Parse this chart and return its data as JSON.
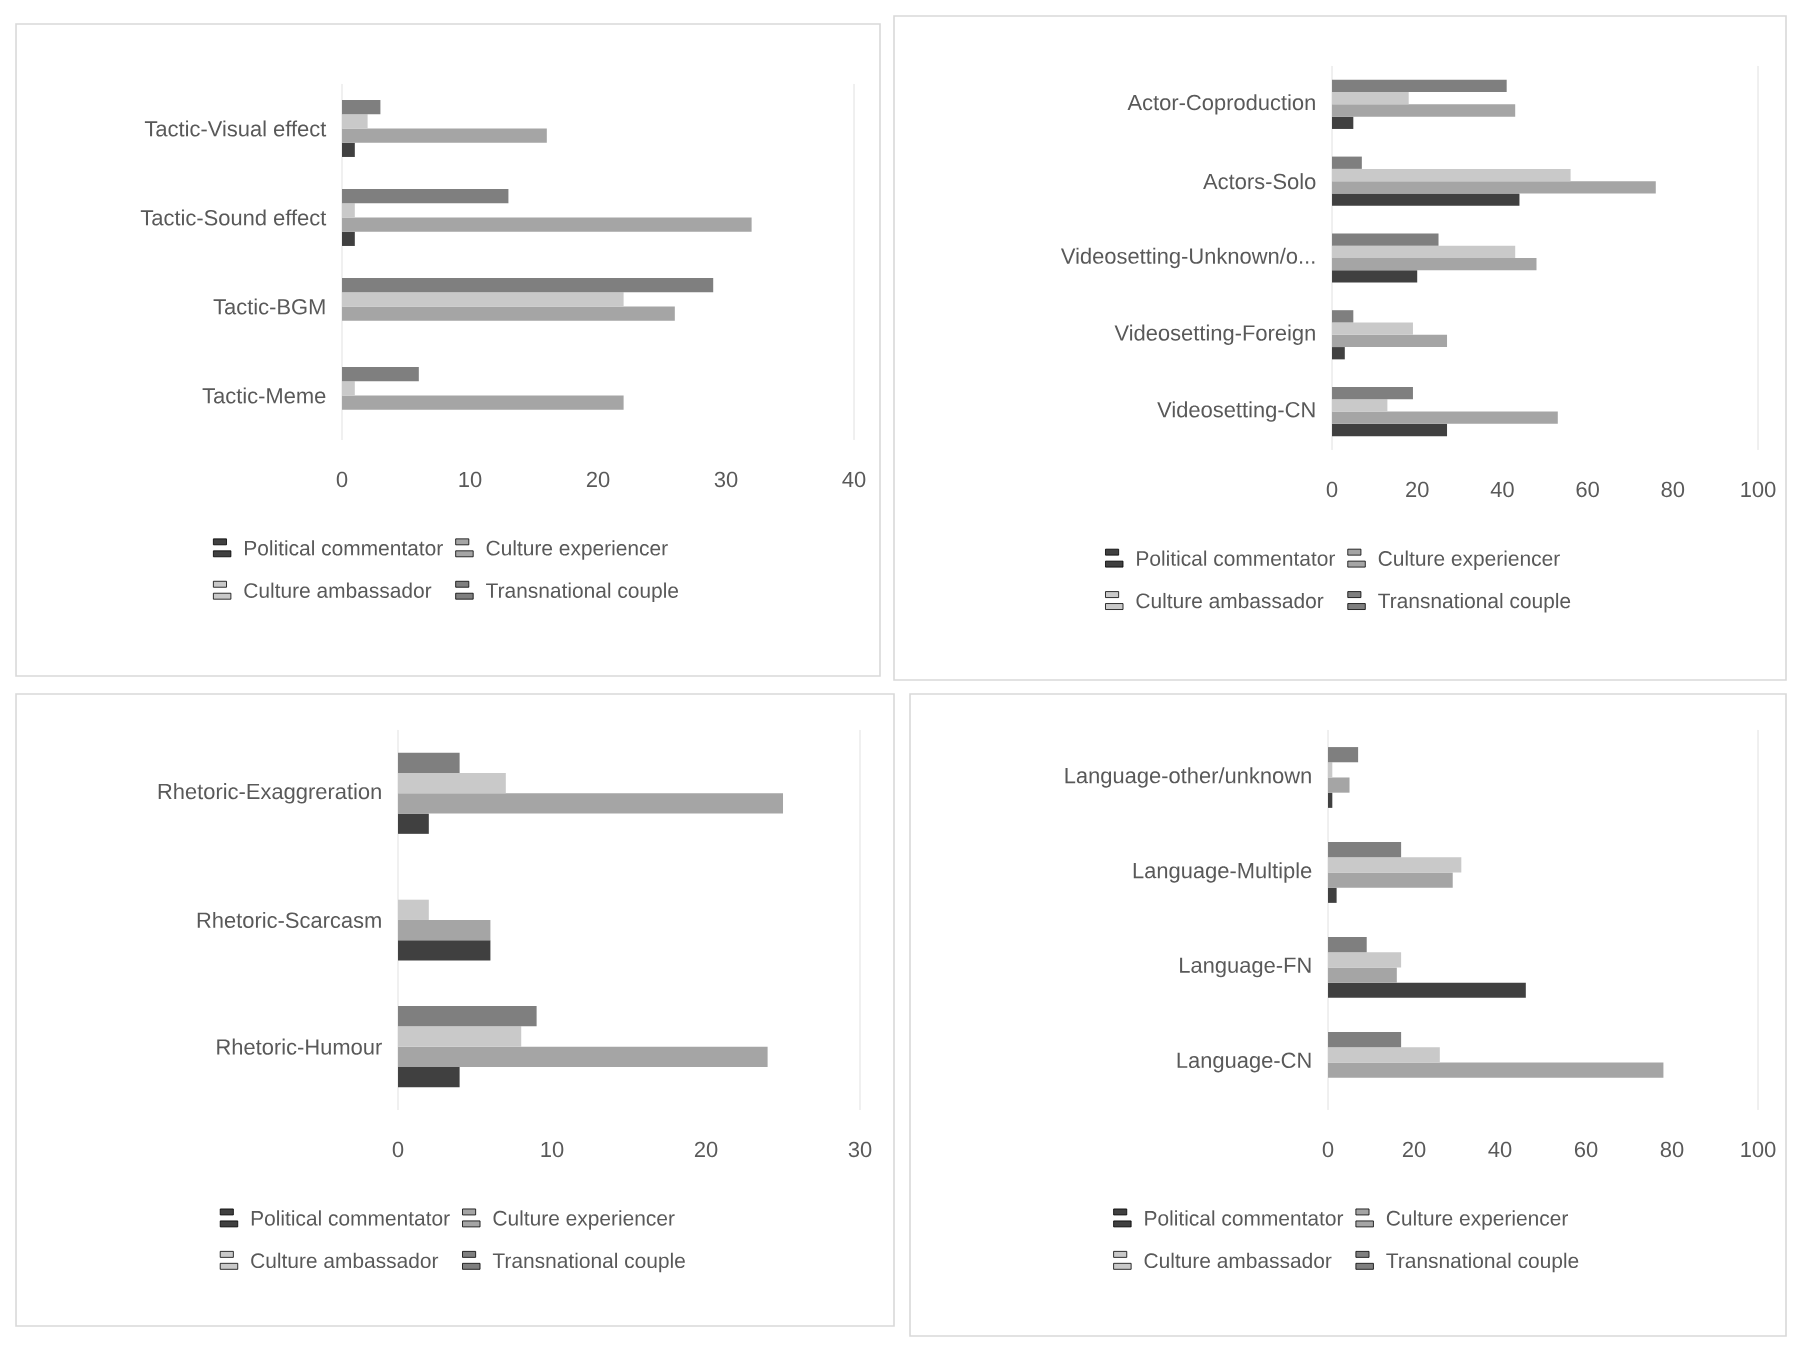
{
  "chart_data": [
    {
      "type": "bar",
      "orientation": "horizontal",
      "categories": [
        "Tactic-Visual effect",
        "Tactic-Sound effect",
        "Tactic-BGM",
        "Tactic-Meme"
      ],
      "xlim": [
        0,
        40
      ],
      "xticks": [
        0,
        10,
        20,
        30,
        40
      ],
      "legend": "bottom",
      "series": [
        {
          "name": "Political commentator",
          "color": "#404040",
          "values": [
            1,
            1,
            0,
            0
          ]
        },
        {
          "name": "Culture experiencer",
          "color": "#a5a5a5",
          "values": [
            16,
            32,
            26,
            22
          ]
        },
        {
          "name": "Culture ambassador",
          "color": "#c9c9c9",
          "values": [
            2,
            1,
            22,
            1
          ]
        },
        {
          "name": "Transnational couple",
          "color": "#7f7f7f",
          "values": [
            3,
            13,
            29,
            6
          ]
        }
      ]
    },
    {
      "type": "bar",
      "orientation": "horizontal",
      "categories": [
        "Actor-Coproduction",
        "Actors-Solo",
        "Videosetting-Unknown/o...",
        "Videosetting-Foreign",
        "Videosetting-CN"
      ],
      "xlim": [
        0,
        100
      ],
      "xticks": [
        0,
        20,
        40,
        60,
        80,
        100
      ],
      "legend": "bottom",
      "series": [
        {
          "name": "Political commentator",
          "color": "#404040",
          "values": [
            5,
            44,
            20,
            3,
            27
          ]
        },
        {
          "name": "Culture experiencer",
          "color": "#a5a5a5",
          "values": [
            43,
            76,
            48,
            27,
            53
          ]
        },
        {
          "name": "Culture ambassador",
          "color": "#c9c9c9",
          "values": [
            18,
            56,
            43,
            19,
            13
          ]
        },
        {
          "name": "Transnational couple",
          "color": "#7f7f7f",
          "values": [
            41,
            7,
            25,
            5,
            19
          ]
        }
      ]
    },
    {
      "type": "bar",
      "orientation": "horizontal",
      "categories": [
        "Rhetoric-Exaggreration",
        "Rhetoric-Scarcasm",
        "Rhetoric-Humour"
      ],
      "xlim": [
        0,
        30
      ],
      "xticks": [
        0,
        10,
        20,
        30
      ],
      "legend": "bottom",
      "series": [
        {
          "name": "Political commentator",
          "color": "#404040",
          "values": [
            2,
            6,
            4
          ]
        },
        {
          "name": "Culture experiencer",
          "color": "#a5a5a5",
          "values": [
            25,
            6,
            24
          ]
        },
        {
          "name": "Culture ambassador",
          "color": "#c9c9c9",
          "values": [
            7,
            2,
            8
          ]
        },
        {
          "name": "Transnational couple",
          "color": "#7f7f7f",
          "values": [
            4,
            0,
            9
          ]
        }
      ]
    },
    {
      "type": "bar",
      "orientation": "horizontal",
      "categories": [
        "Language-other/unknown",
        "Language-Multiple",
        "Language-FN",
        "Language-CN"
      ],
      "xlim": [
        0,
        100
      ],
      "xticks": [
        0,
        20,
        40,
        60,
        80,
        100
      ],
      "legend": "bottom",
      "series": [
        {
          "name": "Political commentator",
          "color": "#404040",
          "values": [
            1,
            2,
            46,
            0
          ]
        },
        {
          "name": "Culture experiencer",
          "color": "#a5a5a5",
          "values": [
            5,
            29,
            16,
            78
          ]
        },
        {
          "name": "Culture ambassador",
          "color": "#c9c9c9",
          "values": [
            1,
            31,
            17,
            26
          ]
        },
        {
          "name": "Transnational couple",
          "color": "#7f7f7f",
          "values": [
            7,
            17,
            9,
            17
          ]
        }
      ]
    }
  ]
}
